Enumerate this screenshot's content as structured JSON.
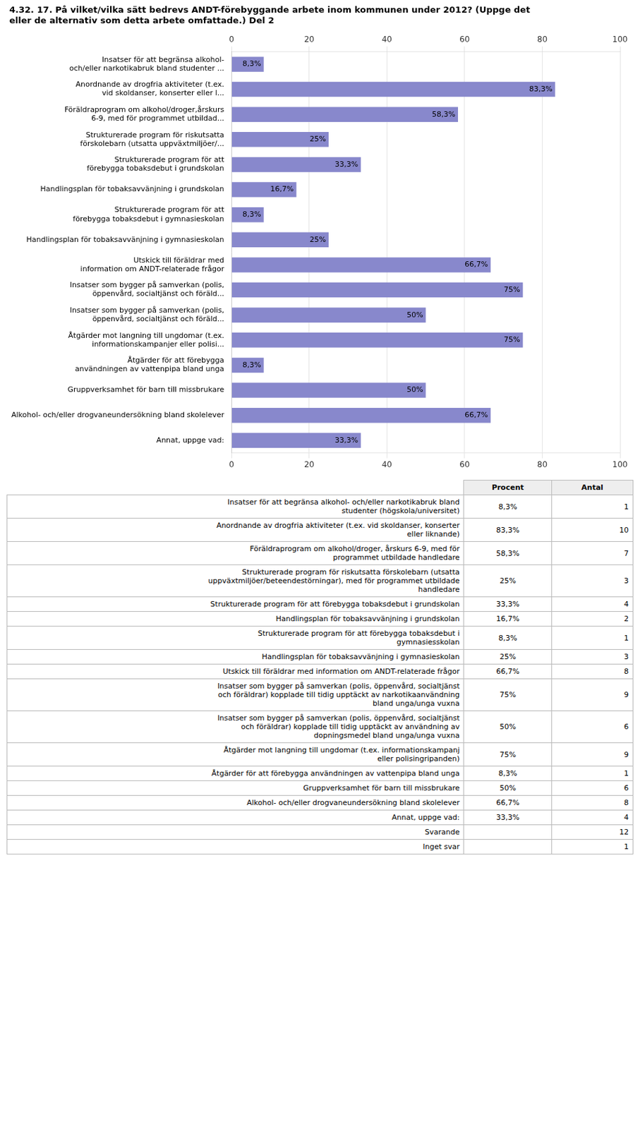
{
  "chart_data": {
    "type": "bar",
    "orientation": "horizontal",
    "title": "4.32. 17. På vilket/vilka sätt bedrevs ANDT-förebyggande arbete inom kommunen under 2012? (Uppge det\neller de alternativ som detta arbete omfattade.) Del 2",
    "categories": [
      "Insatser för att begränsa alkohol-\noch/eller narkotikabruk bland studenter ...",
      "Anordnande av drogfria aktiviteter (t.ex.\nvid skoldanser, konserter eller l...",
      "Föräldraprogram om alkohol/droger,årskurs\n6-9, med för programmet utbildad...",
      "Strukturerade program för riskutsatta\nförskolebarn (utsatta uppväxtmiljöer/...",
      "Strukturerade program för att\nförebygga tobaksdebut i grundskolan",
      "Handlingsplan för tobaksavvänjning i grundskolan",
      "Strukturerade program för att\nförebygga tobaksdebut i gymnasieskolan",
      "Handlingsplan för tobaksavvänjning i gymnasieskolan",
      "Utskick till föräldrar med\ninformation om ANDT-relaterade frågor",
      "Insatser som bygger på samverkan (polis,\nöppenvård, socialtjänst och föräld...",
      "Insatser som bygger på samverkan (polis,\nöppenvård, socialtjänst och föräld...",
      "Åtgärder mot langning till ungdomar (t.ex.\ninformationskampanjer eller polisi...",
      "Åtgärder för att förebygga\nanvändningen av vattenpipa bland unga",
      "Gruppverksamhet för barn till missbrukare",
      "Alkohol- och/eller drogvaneundersökning bland skolelever",
      "Annat, uppge vad:"
    ],
    "values": [
      8.3,
      83.3,
      58.3,
      25.0,
      33.3,
      16.7,
      8.3,
      25.0,
      66.7,
      75.0,
      50.0,
      75.0,
      8.3,
      50.0,
      66.7,
      33.3
    ],
    "value_labels": [
      "8,3%",
      "83,3%",
      "58,3%",
      "25%",
      "33,3%",
      "16,7%",
      "8,3%",
      "25%",
      "66,7%",
      "75%",
      "50%",
      "75%",
      "8,3%",
      "50%",
      "66,7%",
      "33,3%"
    ],
    "color": "#8888CC",
    "xlim": [
      0,
      100
    ],
    "xticks": [
      0,
      20,
      40,
      60,
      80,
      100
    ],
    "grid": true,
    "data_labels": true
  },
  "table": {
    "columns": [
      "Procent",
      "Antal"
    ],
    "rows": [
      {
        "label": "Insatser för att begränsa alkohol- och/eller narkotikabruk bland\nstudenter (högskola/universitet)",
        "percent": "8,3%",
        "count": 1
      },
      {
        "label": "Anordnande av drogfria aktiviteter (t.ex. vid skoldanser, konserter\neller liknande)",
        "percent": "83,3%",
        "count": 10
      },
      {
        "label": "Föräldraprogram om alkohol/droger, årskurs 6-9, med för\nprogrammet utbildade handledare",
        "percent": "58,3%",
        "count": 7
      },
      {
        "label": "Strukturerade program för riskutsatta förskolebarn (utsatta\nuppväxtmiljöer/beteendestörningar), med för programmet utbildade\nhandledare",
        "percent": "25%",
        "count": 3
      },
      {
        "label": "Strukturerade program för att förebygga tobaksdebut i grundskolan",
        "percent": "33,3%",
        "count": 4
      },
      {
        "label": "Handlingsplan för tobaksavvänjning i grundskolan",
        "percent": "16,7%",
        "count": 2
      },
      {
        "label": "Strukturerade program för att förebygga tobaksdebut i\ngymnasiesskolan",
        "percent": "8,3%",
        "count": 1
      },
      {
        "label": "Handlingsplan för tobaksavvänjning i gymnasieskolan",
        "percent": "25%",
        "count": 3
      },
      {
        "label": "Utskick till föräldrar med information om ANDT-relaterade frågor",
        "percent": "66,7%",
        "count": 8
      },
      {
        "label": "Insatser som bygger på samverkan (polis, öppenvård, socialtjänst\noch föräldrar) kopplade till tidig upptäckt av narkotikaanvändning\nbland unga/unga vuxna",
        "percent": "75%",
        "count": 9
      },
      {
        "label": "Insatser som bygger på samverkan (polis, öppenvård, socialtjänst\noch föräldrar) kopplade till tidig upptäckt av användning av\ndopningsmedel bland unga/unga vuxna",
        "percent": "50%",
        "count": 6
      },
      {
        "label": "Åtgärder mot langning till ungdomar (t.ex. informationskampanj\neller polisingripanden)",
        "percent": "75%",
        "count": 9
      },
      {
        "label": "Åtgärder för att förebygga användningen av vattenpipa bland unga",
        "percent": "8,3%",
        "count": 1
      },
      {
        "label": "Gruppverksamhet för barn till missbrukare",
        "percent": "50%",
        "count": 6
      },
      {
        "label": "Alkohol- och/eller drogvaneundersökning bland skolelever",
        "percent": "66,7%",
        "count": 8
      },
      {
        "label": "Annat, uppge vad:",
        "percent": "33,3%",
        "count": 4
      },
      {
        "label": "Svarande",
        "count": 12
      },
      {
        "label": "Inget svar",
        "count": 1
      }
    ]
  }
}
